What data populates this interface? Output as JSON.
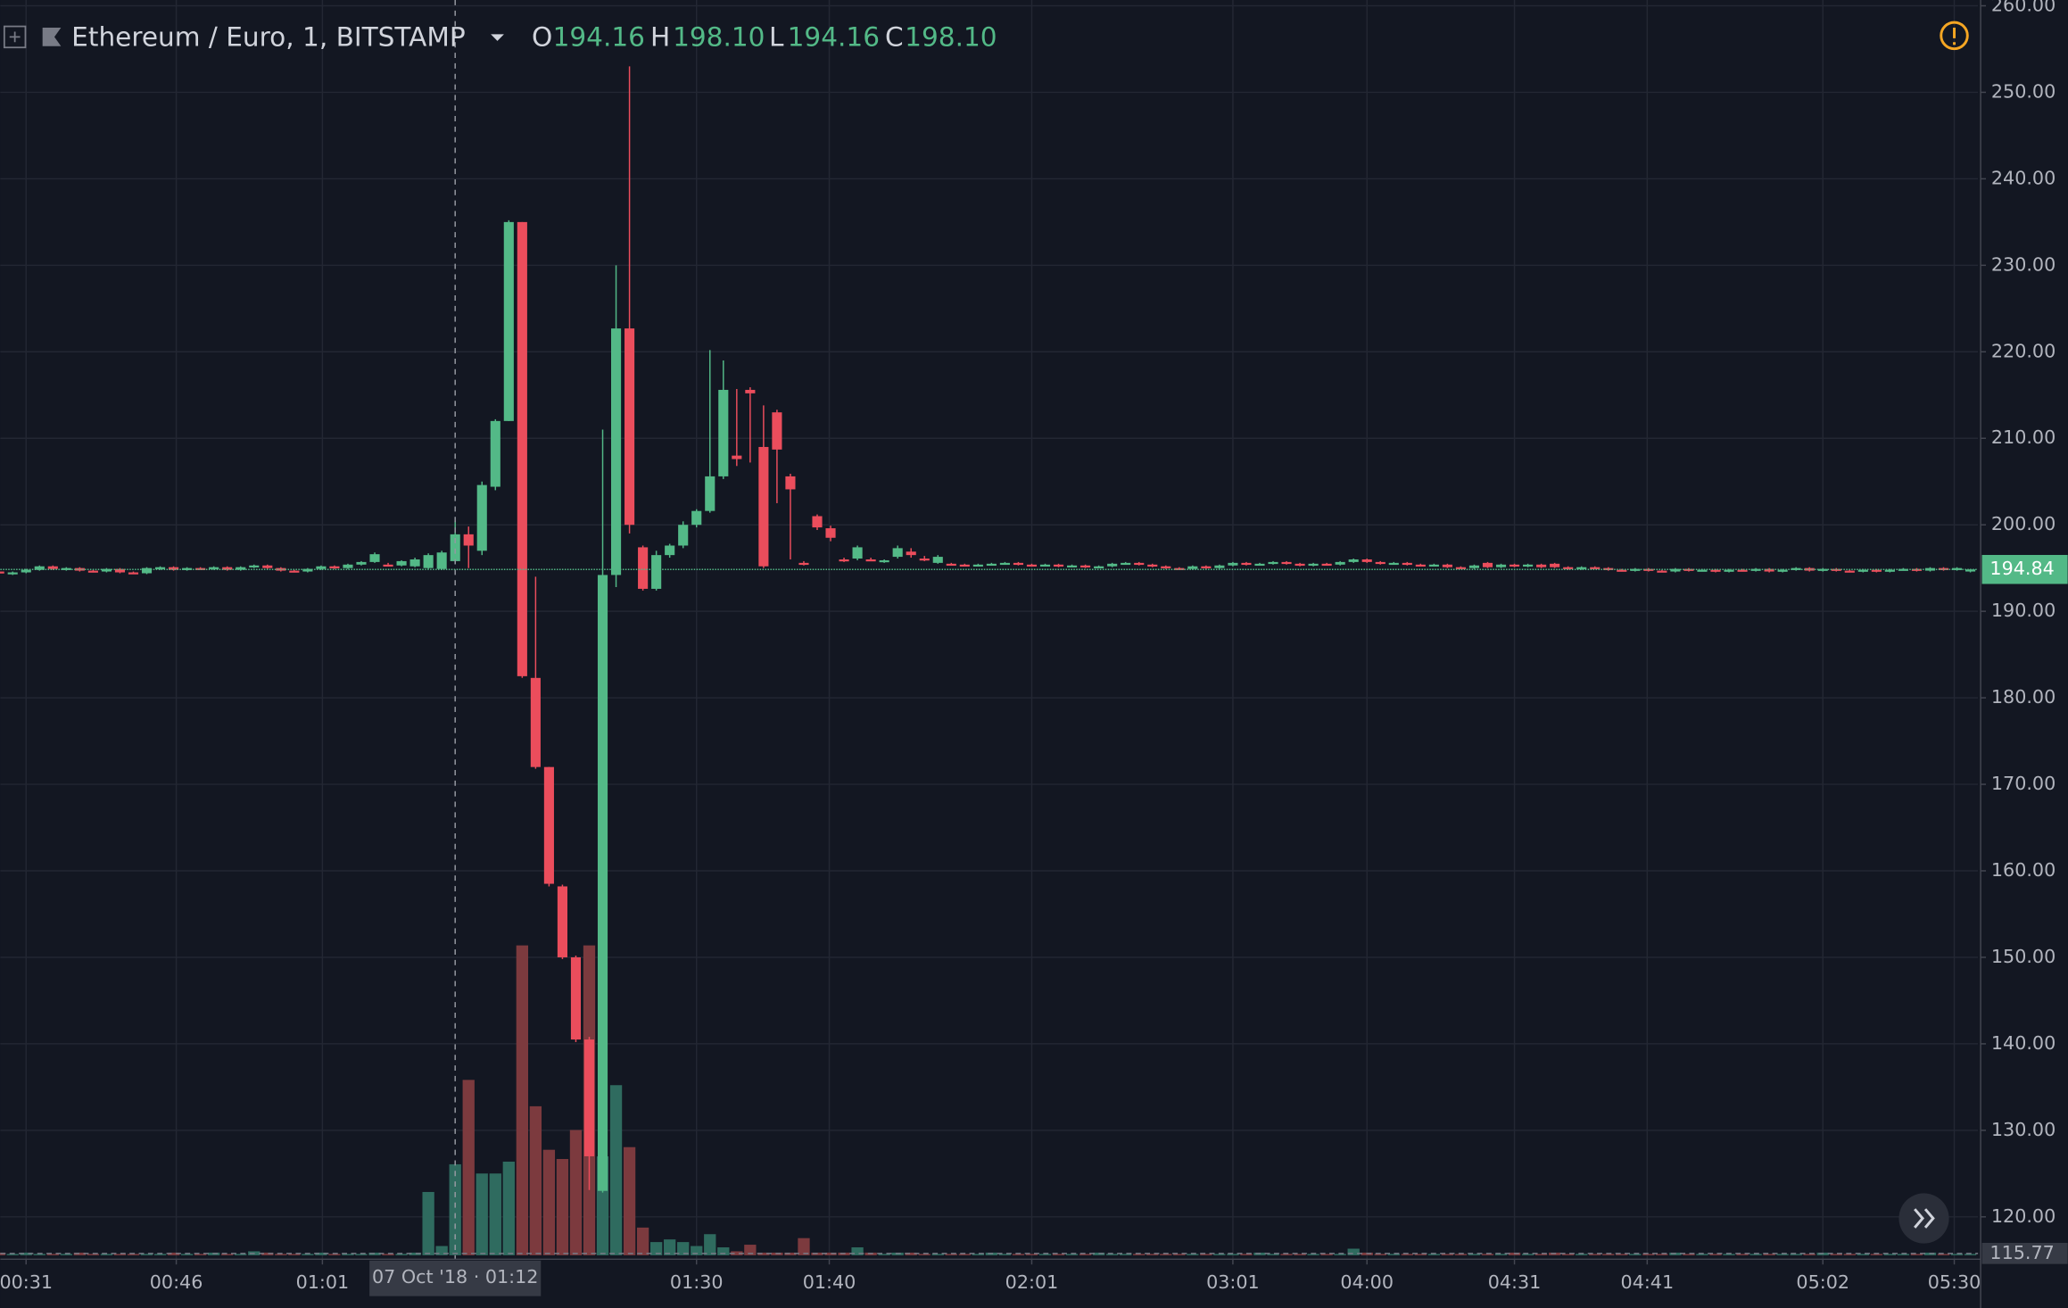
{
  "chart_data": {
    "type": "candlestick",
    "title": "Ethereum / Euro, 1, BITSTAMP",
    "ohlc_legend": [
      {
        "key": "O",
        "value": "194.16"
      },
      {
        "key": "H",
        "value": "198.10"
      },
      {
        "key": "L",
        "value": "194.16"
      },
      {
        "key": "C",
        "value": "198.10"
      }
    ],
    "up_color": "#53b987",
    "down_color": "#eb4d5c",
    "volume_up_color": "#2f6b5f",
    "volume_down_color": "#7c3a3e",
    "grid": true,
    "xlim": [
      0.08,
      147.57
    ],
    "xticks": [
      {
        "value": 2,
        "label": "00:31"
      },
      {
        "value": 13.2,
        "label": "00:46"
      },
      {
        "value": 24.1,
        "label": "01:01"
      },
      {
        "value": 52,
        "label": "01:30"
      },
      {
        "value": 61.9,
        "label": "01:40"
      },
      {
        "value": 77,
        "label": "02:01"
      },
      {
        "value": 92,
        "label": "03:01"
      },
      {
        "value": 102,
        "label": "04:00"
      },
      {
        "value": 113,
        "label": "04:31"
      },
      {
        "value": 122.9,
        "label": "04:41"
      },
      {
        "value": 136,
        "label": "05:02"
      },
      {
        "value": 145.8,
        "label": "05:30"
      }
    ],
    "crosshair": {
      "x": 34,
      "label": "07 Oct '18 · 01:12"
    },
    "ylim": [
      115.1,
      260.67
    ],
    "yticks": [
      {
        "value": 120,
        "label": "120.00"
      },
      {
        "value": 130,
        "label": "130.00"
      },
      {
        "value": 140,
        "label": "140.00"
      },
      {
        "value": 150,
        "label": "150.00"
      },
      {
        "value": 160,
        "label": "160.00"
      },
      {
        "value": 170,
        "label": "170.00"
      },
      {
        "value": 180,
        "label": "180.00"
      },
      {
        "value": 190,
        "label": "190.00"
      },
      {
        "value": 200,
        "label": "200.00"
      },
      {
        "value": 210,
        "label": "210.00"
      },
      {
        "value": 220,
        "label": "220.00"
      },
      {
        "value": 230,
        "label": "230.00"
      },
      {
        "value": 240,
        "label": "240.00"
      },
      {
        "value": 250,
        "label": "250.00"
      },
      {
        "value": 260,
        "label": "260.00"
      }
    ],
    "last_price": 194.84,
    "low_line": 115.77,
    "volume_lim": [
      0,
      400
    ],
    "values": [
      [
        194.6,
        194.8,
        194.3,
        194.4
      ],
      [
        194.4,
        194.6,
        194.2,
        194.5
      ],
      [
        194.5,
        194.9,
        194.4,
        194.8
      ],
      [
        194.8,
        195.3,
        194.7,
        195.2
      ],
      [
        195.2,
        195.3,
        194.8,
        194.9
      ],
      [
        194.9,
        195.1,
        194.7,
        195.0
      ],
      [
        195.0,
        195.1,
        194.6,
        194.7
      ],
      [
        194.7,
        194.8,
        194.5,
        194.6
      ],
      [
        194.6,
        195.0,
        194.5,
        194.9
      ],
      [
        194.9,
        195.0,
        194.4,
        194.5
      ],
      [
        194.5,
        194.6,
        194.3,
        194.4
      ],
      [
        194.4,
        195.1,
        194.3,
        195.0
      ],
      [
        195.0,
        195.2,
        194.8,
        195.1
      ],
      [
        195.1,
        195.2,
        194.7,
        194.8
      ],
      [
        194.8,
        195.1,
        194.7,
        195.0
      ],
      [
        195.0,
        195.1,
        194.8,
        194.9
      ],
      [
        194.9,
        195.2,
        194.8,
        195.1
      ],
      [
        195.1,
        195.2,
        194.7,
        194.8
      ],
      [
        194.8,
        195.2,
        194.7,
        195.1
      ],
      [
        195.1,
        195.4,
        195.0,
        195.3
      ],
      [
        195.3,
        195.4,
        194.9,
        195.0
      ],
      [
        195.0,
        195.1,
        194.6,
        194.7
      ],
      [
        194.7,
        194.8,
        194.5,
        194.6
      ],
      [
        194.6,
        195.0,
        194.5,
        194.9
      ],
      [
        194.9,
        195.3,
        194.8,
        195.2
      ],
      [
        195.2,
        195.3,
        194.9,
        195.0
      ],
      [
        195.0,
        195.5,
        194.9,
        195.4
      ],
      [
        195.4,
        195.8,
        195.3,
        195.7
      ],
      [
        195.7,
        196.8,
        195.6,
        196.6
      ],
      [
        195.4,
        195.6,
        195.2,
        195.3
      ],
      [
        195.3,
        195.9,
        195.2,
        195.8
      ],
      [
        195.2,
        196.2,
        195.1,
        196.0
      ],
      [
        195.0,
        196.7,
        194.9,
        196.5
      ],
      [
        194.9,
        197.0,
        194.8,
        196.8
      ],
      [
        195.8,
        200.5,
        195.5,
        198.9
      ],
      [
        198.9,
        199.8,
        195.0,
        197.6
      ],
      [
        197.0,
        205.0,
        196.5,
        204.6
      ],
      [
        204.4,
        212.2,
        204.0,
        212.0
      ],
      [
        212.0,
        235.2,
        212.0,
        235.0
      ],
      [
        235.0,
        235.0,
        182.3,
        182.5
      ],
      [
        182.3,
        194.0,
        171.8,
        172.0
      ],
      [
        172.0,
        172.0,
        158.2,
        158.5
      ],
      [
        158.2,
        158.4,
        149.8,
        150.0
      ],
      [
        150.0,
        150.2,
        140.2,
        140.5
      ],
      [
        140.5,
        140.8,
        123.1,
        127.0
      ],
      [
        123.0,
        211.0,
        122.8,
        194.2
      ],
      [
        194.2,
        230.0,
        192.8,
        222.7
      ],
      [
        222.7,
        253.0,
        199.0,
        200.0
      ],
      [
        197.4,
        197.6,
        192.4,
        192.6
      ],
      [
        192.6,
        197.0,
        192.4,
        196.5
      ],
      [
        196.5,
        197.8,
        196.2,
        197.6
      ],
      [
        197.6,
        200.4,
        197.3,
        200.0
      ],
      [
        200.0,
        201.8,
        199.7,
        201.6
      ],
      [
        201.6,
        220.2,
        201.4,
        205.6
      ],
      [
        205.6,
        219.0,
        205.3,
        215.6
      ],
      [
        208.0,
        215.7,
        206.8,
        207.6
      ],
      [
        215.6,
        215.9,
        207.2,
        215.2
      ],
      [
        209.0,
        213.8,
        195.0,
        195.2
      ],
      [
        213.0,
        213.3,
        202.5,
        208.7
      ],
      [
        205.6,
        205.9,
        196.0,
        204.1
      ],
      [
        195.6,
        195.8,
        195.3,
        195.4
      ],
      [
        201.0,
        201.2,
        199.4,
        199.7
      ],
      [
        199.6,
        199.9,
        198.1,
        198.5
      ],
      [
        196.0,
        196.2,
        195.7,
        195.8
      ],
      [
        196.1,
        197.6,
        195.9,
        197.4
      ],
      [
        196.0,
        196.2,
        195.8,
        195.9
      ],
      [
        195.8,
        196.0,
        195.6,
        195.9
      ],
      [
        196.3,
        197.6,
        196.1,
        197.3
      ],
      [
        196.9,
        197.3,
        196.2,
        196.5
      ],
      [
        196.1,
        196.4,
        195.8,
        196.0
      ],
      [
        195.6,
        196.5,
        195.5,
        196.3
      ],
      [
        195.5,
        195.6,
        195.3,
        195.4
      ],
      [
        195.4,
        195.5,
        195.2,
        195.3
      ],
      [
        195.3,
        195.5,
        195.2,
        195.4
      ],
      [
        195.4,
        195.6,
        195.3,
        195.5
      ],
      [
        195.5,
        195.7,
        195.4,
        195.6
      ],
      [
        195.6,
        195.7,
        195.3,
        195.4
      ],
      [
        195.4,
        195.5,
        195.2,
        195.3
      ],
      [
        195.3,
        195.5,
        195.2,
        195.4
      ],
      [
        195.4,
        195.5,
        195.1,
        195.2
      ],
      [
        195.2,
        195.4,
        195.1,
        195.3
      ],
      [
        195.3,
        195.4,
        195.0,
        195.1
      ],
      [
        195.1,
        195.3,
        195.0,
        195.2
      ],
      [
        195.2,
        195.6,
        195.1,
        195.5
      ],
      [
        195.5,
        195.7,
        195.4,
        195.6
      ],
      [
        195.6,
        195.7,
        195.3,
        195.4
      ],
      [
        195.4,
        195.5,
        195.1,
        195.2
      ],
      [
        195.2,
        195.3,
        194.9,
        195.0
      ],
      [
        195.0,
        195.1,
        194.8,
        194.9
      ],
      [
        194.9,
        195.3,
        194.8,
        195.2
      ],
      [
        195.2,
        195.3,
        194.9,
        195.0
      ],
      [
        195.0,
        195.4,
        194.9,
        195.3
      ],
      [
        195.3,
        195.7,
        195.2,
        195.6
      ],
      [
        195.6,
        195.7,
        195.3,
        195.4
      ],
      [
        195.4,
        195.6,
        195.3,
        195.5
      ],
      [
        195.5,
        195.8,
        195.4,
        195.7
      ],
      [
        195.7,
        195.8,
        195.4,
        195.5
      ],
      [
        195.5,
        195.6,
        195.2,
        195.3
      ],
      [
        195.3,
        195.6,
        195.2,
        195.5
      ],
      [
        195.5,
        195.6,
        195.3,
        195.4
      ],
      [
        195.4,
        195.8,
        195.3,
        195.7
      ],
      [
        195.7,
        196.1,
        195.6,
        196.0
      ],
      [
        196.0,
        196.1,
        195.6,
        195.7
      ],
      [
        195.7,
        195.8,
        195.4,
        195.5
      ],
      [
        195.5,
        195.7,
        195.4,
        195.6
      ],
      [
        195.6,
        195.7,
        195.3,
        195.4
      ],
      [
        195.4,
        195.5,
        195.2,
        195.3
      ],
      [
        195.3,
        195.5,
        195.2,
        195.4
      ],
      [
        195.4,
        195.5,
        195.0,
        195.1
      ],
      [
        195.1,
        195.2,
        194.9,
        195.0
      ],
      [
        195.0,
        195.4,
        194.9,
        195.3
      ],
      [
        195.6,
        195.7,
        195.0,
        195.1
      ],
      [
        195.1,
        195.5,
        195.0,
        195.4
      ],
      [
        195.4,
        195.5,
        195.1,
        195.2
      ],
      [
        195.2,
        195.5,
        195.1,
        195.4
      ],
      [
        195.4,
        195.5,
        195.0,
        195.1
      ],
      [
        195.5,
        195.6,
        195.0,
        195.1
      ],
      [
        195.1,
        195.2,
        194.8,
        194.9
      ],
      [
        194.9,
        195.2,
        194.8,
        195.1
      ],
      [
        195.1,
        195.2,
        194.9,
        195.0
      ],
      [
        195.0,
        195.1,
        194.7,
        194.8
      ],
      [
        194.8,
        194.9,
        194.6,
        194.7
      ],
      [
        194.7,
        195.0,
        194.6,
        194.9
      ],
      [
        194.9,
        195.0,
        194.6,
        194.7
      ],
      [
        194.7,
        194.8,
        194.5,
        194.6
      ],
      [
        194.6,
        195.0,
        194.5,
        194.9
      ],
      [
        194.9,
        195.0,
        194.6,
        194.7
      ],
      [
        194.7,
        194.9,
        194.6,
        194.8
      ],
      [
        194.8,
        194.9,
        194.5,
        194.6
      ],
      [
        194.6,
        194.9,
        194.5,
        194.8
      ],
      [
        194.8,
        194.9,
        194.6,
        194.7
      ],
      [
        194.7,
        195.0,
        194.6,
        194.9
      ],
      [
        194.9,
        195.0,
        194.5,
        194.6
      ],
      [
        194.6,
        194.9,
        194.5,
        194.8
      ],
      [
        194.8,
        195.1,
        194.7,
        195.0
      ],
      [
        195.0,
        195.1,
        194.6,
        194.7
      ],
      [
        194.7,
        195.0,
        194.6,
        194.9
      ],
      [
        194.9,
        195.0,
        194.6,
        194.7
      ],
      [
        194.7,
        194.8,
        194.5,
        194.6
      ],
      [
        194.6,
        194.9,
        194.5,
        194.8
      ],
      [
        194.8,
        194.9,
        194.5,
        194.6
      ],
      [
        194.6,
        194.9,
        194.5,
        194.8
      ],
      [
        194.8,
        195.0,
        194.7,
        194.9
      ],
      [
        194.9,
        195.0,
        194.6,
        194.7
      ],
      [
        194.7,
        195.1,
        194.6,
        195.0
      ],
      [
        195.0,
        195.1,
        194.7,
        194.8
      ],
      [
        194.8,
        195.1,
        194.7,
        195.0
      ],
      [
        194.6,
        194.9,
        194.5,
        194.84
      ]
    ],
    "volume": [
      2,
      1,
      2,
      1,
      1,
      1,
      2,
      1,
      1,
      1,
      1,
      1,
      1,
      2,
      1,
      1,
      2,
      1,
      1,
      3,
      2,
      1,
      1,
      1,
      2,
      1,
      1,
      1,
      2,
      1,
      1,
      2,
      48,
      7,
      69,
      133,
      62,
      62,
      71,
      235,
      113,
      80,
      73,
      95,
      235,
      75,
      129,
      82,
      21,
      10,
      12,
      10,
      7,
      16,
      6,
      3,
      8,
      2,
      2,
      2,
      13,
      2,
      2,
      2,
      6,
      2,
      1,
      2,
      2,
      1,
      1,
      1,
      1,
      1,
      2,
      1,
      1,
      1,
      1,
      1,
      1,
      1,
      2,
      1,
      1,
      1,
      1,
      1,
      1,
      1,
      1,
      1,
      1,
      1,
      2,
      1,
      1,
      1,
      1,
      1,
      1,
      5,
      2,
      1,
      1,
      1,
      1,
      1,
      1,
      1,
      1,
      1,
      1,
      2,
      1,
      1,
      2,
      1,
      1,
      1,
      1,
      1,
      1,
      1,
      1,
      2,
      1,
      1,
      1,
      1,
      1,
      1,
      1,
      1,
      1,
      1,
      2,
      1,
      1,
      1,
      1,
      1,
      1,
      1,
      2,
      1,
      1,
      1
    ]
  }
}
